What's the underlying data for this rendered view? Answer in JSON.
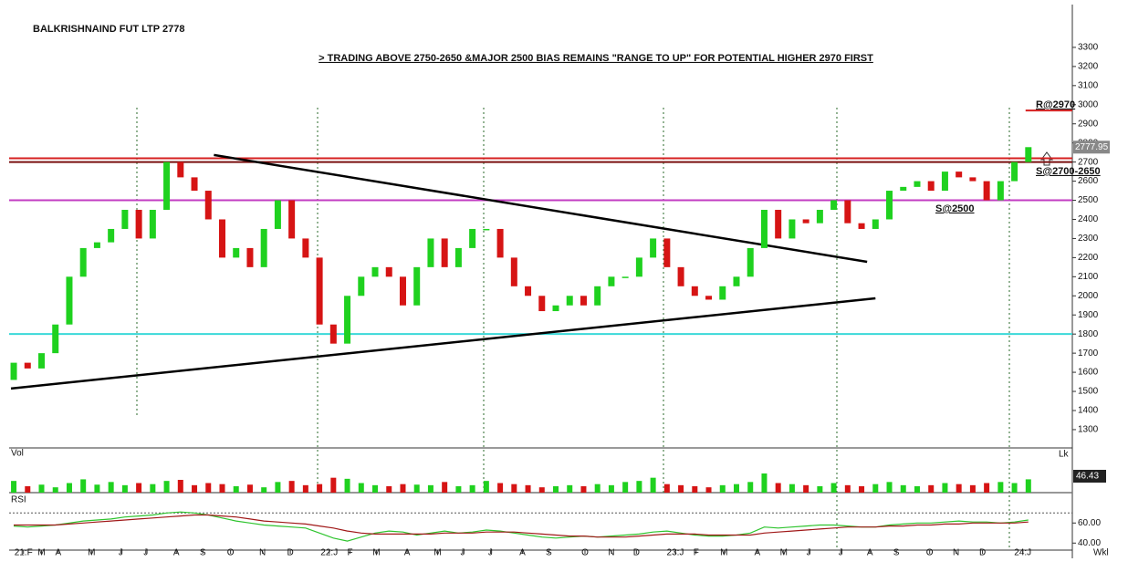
{
  "chart_data": {
    "type": "candlestick",
    "title": "BALKRISHNAIND FUT LTP 2778",
    "subtitle": "> TRADING ABOVE 2750-2650 &MAJOR 2500 BIAS REMAINS \"RANGE TO UP\" FOR POTENTIAL HIGHER 2970 FIRST",
    "up_color": "#1fd11f",
    "down_color": "#d61414",
    "open": [
      1560,
      1650,
      1620,
      1700,
      1850,
      2100,
      2250,
      2280,
      2350,
      2450,
      2300,
      2450,
      2700,
      2620,
      2550,
      2400,
      2200,
      2250,
      2150,
      2350,
      2500,
      2300,
      2200,
      1850,
      1750,
      2000,
      2100,
      2150,
      2100,
      1950,
      2150,
      2300,
      2150,
      2250,
      2350,
      2350,
      2200,
      2050,
      2000,
      1920,
      1950,
      2000,
      1950,
      2050,
      2100,
      2100,
      2200,
      2300,
      2150,
      2050,
      2000,
      1980,
      2050,
      2100,
      2250,
      2450,
      2300,
      2400,
      2380,
      2450,
      2500,
      2380,
      2350,
      2400,
      2550,
      2570,
      2600,
      2550,
      2650,
      2620,
      2600,
      2500,
      2600,
      2700
    ],
    "close": [
      1650,
      1620,
      1700,
      1850,
      2100,
      2250,
      2280,
      2350,
      2450,
      2300,
      2450,
      2700,
      2620,
      2550,
      2400,
      2200,
      2250,
      2150,
      2350,
      2500,
      2300,
      2200,
      1850,
      1750,
      2000,
      2100,
      2150,
      2100,
      1950,
      2150,
      2300,
      2150,
      2250,
      2350,
      2350,
      2200,
      2050,
      2000,
      1920,
      1950,
      2000,
      1950,
      2050,
      2100,
      2100,
      2200,
      2300,
      2150,
      2050,
      2000,
      1980,
      2050,
      2100,
      2250,
      2450,
      2300,
      2400,
      2380,
      2450,
      2500,
      2380,
      2350,
      2400,
      2550,
      2570,
      2600,
      2550,
      2650,
      2620,
      2600,
      2500,
      2600,
      2700,
      2778
    ],
    "xlim": [
      -0.2,
      73.8
    ],
    "xticks": [
      {
        "value": 0.7,
        "label": "21:F"
      },
      {
        "value": 2,
        "label": "M"
      },
      {
        "value": 3.2,
        "label": "A"
      },
      {
        "value": 5.6,
        "label": "M"
      },
      {
        "value": 7.7,
        "label": "J"
      },
      {
        "value": 9.5,
        "label": "J"
      },
      {
        "value": 11.7,
        "label": "A"
      },
      {
        "value": 13.6,
        "label": "S"
      },
      {
        "value": 15.6,
        "label": "O"
      },
      {
        "value": 17.9,
        "label": "N"
      },
      {
        "value": 19.9,
        "label": "D"
      },
      {
        "value": 22.7,
        "label": "22:J"
      },
      {
        "value": 24.2,
        "label": "F"
      },
      {
        "value": 26.1,
        "label": "M"
      },
      {
        "value": 28.3,
        "label": "A"
      },
      {
        "value": 30.5,
        "label": "M"
      },
      {
        "value": 32.3,
        "label": "J"
      },
      {
        "value": 34.3,
        "label": "J"
      },
      {
        "value": 36.6,
        "label": "A"
      },
      {
        "value": 38.5,
        "label": "S"
      },
      {
        "value": 41.1,
        "label": "O"
      },
      {
        "value": 43,
        "label": "N"
      },
      {
        "value": 44.8,
        "label": "D"
      },
      {
        "value": 47.6,
        "label": "23:J"
      },
      {
        "value": 49.1,
        "label": "F"
      },
      {
        "value": 51.1,
        "label": "M"
      },
      {
        "value": 53.5,
        "label": "A"
      },
      {
        "value": 55.4,
        "label": "M"
      },
      {
        "value": 57.2,
        "label": "J"
      },
      {
        "value": 59.5,
        "label": "J"
      },
      {
        "value": 61.6,
        "label": "A"
      },
      {
        "value": 63.5,
        "label": "S"
      },
      {
        "value": 65.9,
        "label": "O"
      },
      {
        "value": 67.8,
        "label": "N"
      },
      {
        "value": 69.7,
        "label": "D"
      },
      {
        "value": 72.6,
        "label": "24:J"
      }
    ],
    "period_label": "Wkl",
    "ylim": [
      1209,
      3524
    ],
    "yticks": [
      1300,
      1400,
      1500,
      1600,
      1700,
      1800,
      1900,
      2000,
      2100,
      2200,
      2300,
      2400,
      2500,
      2600,
      2700,
      2800,
      2900,
      3000,
      3100,
      3200,
      3300
    ],
    "last_price": 2777.95,
    "levels": [
      {
        "value": 2720,
        "color": "#d62020"
      },
      {
        "value": 2700,
        "color": "#7a1010"
      },
      {
        "value": 2500,
        "color": "#c23cc2"
      },
      {
        "value": 1800,
        "color": "#3ad8d8"
      },
      {
        "value": 2970,
        "color": "#d62020",
        "from": 72.8
      }
    ],
    "trendlines": [
      {
        "from": [
          14.4,
          2737
        ],
        "to": [
          61.4,
          2178
        ]
      },
      {
        "from": [
          -0.2,
          1515
        ],
        "to": [
          62,
          1987
        ]
      }
    ],
    "annotations": [
      "R@2970",
      "S@2700-2650",
      "S@2500"
    ],
    "volume": {
      "label": "Vol",
      "unit": "Lk",
      "last": "46.43",
      "ylim": [
        0,
        60
      ],
      "values": [
        22,
        12,
        15,
        10,
        18,
        25,
        15,
        20,
        14,
        18,
        16,
        22,
        24,
        14,
        18,
        16,
        12,
        15,
        10,
        20,
        22,
        14,
        16,
        28,
        26,
        18,
        14,
        12,
        16,
        15,
        14,
        20,
        12,
        14,
        22,
        18,
        16,
        14,
        10,
        12,
        14,
        12,
        16,
        14,
        20,
        22,
        28,
        16,
        14,
        12,
        10,
        14,
        16,
        20,
        36,
        18,
        16,
        14,
        12,
        18,
        14,
        12,
        16,
        20,
        14,
        12,
        14,
        18,
        16,
        14,
        18,
        20,
        18,
        25
      ]
    },
    "rsi": {
      "label": "RSI",
      "ylim": [
        33,
        83
      ],
      "reference": 70,
      "yticks": [
        {
          "value": 60,
          "label": "60.00"
        },
        {
          "value": 40,
          "label": "40.00"
        }
      ],
      "series": [
        {
          "color": "#2ec42e",
          "values": [
            57,
            56,
            57,
            58,
            60,
            62,
            63,
            64,
            66,
            67,
            68,
            70,
            71,
            70,
            68,
            65,
            62,
            60,
            58,
            57,
            56,
            55,
            50,
            45,
            42,
            46,
            50,
            52,
            51,
            48,
            50,
            52,
            50,
            51,
            53,
            52,
            50,
            48,
            46,
            45,
            46,
            47,
            46,
            47,
            48,
            49,
            51,
            52,
            50,
            48,
            47,
            47,
            48,
            50,
            56,
            55,
            56,
            57,
            58,
            58,
            57,
            56,
            56,
            58,
            59,
            60,
            60,
            61,
            62,
            61,
            61,
            60,
            61,
            63
          ]
        },
        {
          "color": "#a01818",
          "values": [
            58,
            58,
            58,
            58,
            59,
            60,
            61,
            62,
            63,
            64,
            65,
            66,
            67,
            68,
            68,
            67,
            66,
            64,
            62,
            61,
            60,
            59,
            57,
            55,
            52,
            50,
            49,
            49,
            49,
            49,
            49,
            50,
            50,
            50,
            51,
            51,
            51,
            50,
            49,
            48,
            47,
            47,
            46,
            46,
            46,
            47,
            48,
            49,
            49,
            49,
            48,
            48,
            48,
            48,
            50,
            51,
            52,
            53,
            54,
            55,
            56,
            56,
            56,
            57,
            57,
            58,
            58,
            59,
            59,
            60,
            60,
            60,
            60,
            61
          ]
        }
      ]
    }
  }
}
